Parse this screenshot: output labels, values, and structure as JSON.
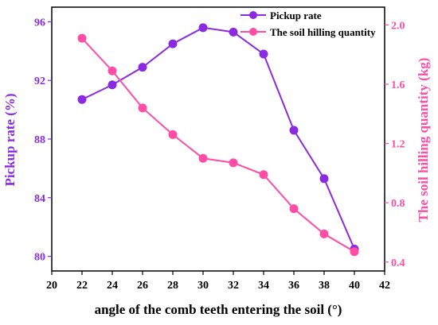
{
  "chart_data": {
    "type": "line",
    "xlabel": "angle of the comb teeth entering the soil (°)",
    "ylabel_left": "Pickup rate (%)",
    "ylabel_right": "The soil hilling quantity (kg)",
    "xlim": [
      20,
      42
    ],
    "ylim_left": [
      79,
      97
    ],
    "ylim_right": [
      0.34,
      2.12
    ],
    "x_ticks": [
      20,
      22,
      24,
      26,
      28,
      30,
      32,
      34,
      36,
      38,
      40,
      42
    ],
    "y_ticks_left": [
      80,
      84,
      88,
      92,
      96
    ],
    "y_ticks_right": [
      0.4,
      0.8,
      1.2,
      1.6,
      2.0
    ],
    "x": [
      22,
      24,
      26,
      28,
      30,
      32,
      34,
      36,
      38,
      40
    ],
    "series": [
      {
        "name": "Pickup rate",
        "axis": "left",
        "color": "#8A2BE2",
        "values": [
          90.7,
          91.7,
          92.9,
          94.5,
          95.6,
          95.3,
          93.8,
          88.6,
          85.3,
          80.5
        ]
      },
      {
        "name": "The soil hilling quantity",
        "axis": "right",
        "color": "#FF4DA6",
        "values": [
          1.91,
          1.69,
          1.44,
          1.26,
          1.1,
          1.07,
          0.99,
          0.76,
          0.59,
          0.47
        ]
      }
    ],
    "legend_position": "top-right",
    "grid": false
  }
}
